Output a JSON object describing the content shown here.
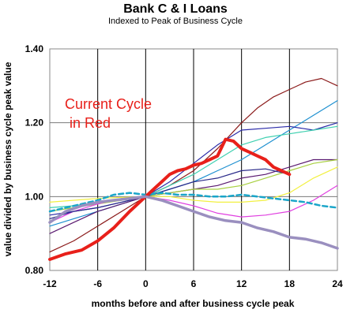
{
  "chart_data": {
    "type": "line",
    "title": "Bank C & I Loans",
    "subtitle": "Indexed to Peak of Business Cycle",
    "xlabel": "months before and after business cycle peak",
    "ylabel": "value divided by business cycle peak value",
    "xlim": [
      -12,
      24
    ],
    "ylim": [
      0.8,
      1.4
    ],
    "x_ticks": [
      "-12",
      "-6",
      "0",
      "6",
      "12",
      "18",
      "24"
    ],
    "y_ticks": [
      "0.80",
      "1.00",
      "1.20",
      "1.40"
    ],
    "grid": "horizontal gridlines and black vertical lines every 6 months",
    "annotation": {
      "line1": "Current Cycle",
      "line2": "in Red",
      "color": "#e8201a"
    },
    "series": [
      {
        "color": "#e8201a",
        "style": "thick",
        "x": [
          -12,
          -10,
          -8,
          -6,
          -4,
          -2,
          0,
          1,
          2,
          3,
          4,
          5,
          6,
          7,
          8,
          9,
          10,
          11,
          12,
          13,
          14,
          15,
          16,
          17,
          18
        ],
        "y": [
          0.83,
          0.845,
          0.855,
          0.88,
          0.915,
          0.96,
          1.0,
          1.02,
          1.04,
          1.06,
          1.07,
          1.075,
          1.085,
          1.09,
          1.1,
          1.11,
          1.155,
          1.15,
          1.13,
          1.12,
          1.11,
          1.1,
          1.08,
          1.07,
          1.06
        ]
      },
      {
        "color": "#9a8fbf",
        "style": "thick",
        "x": [
          -12,
          -10,
          -8,
          -6,
          -4,
          -2,
          0,
          2,
          4,
          6,
          8,
          10,
          12,
          14,
          16,
          18,
          20,
          22,
          24
        ],
        "y": [
          0.93,
          0.96,
          0.975,
          0.985,
          0.99,
          0.995,
          1.0,
          0.99,
          0.975,
          0.96,
          0.945,
          0.935,
          0.93,
          0.915,
          0.905,
          0.89,
          0.885,
          0.875,
          0.86
        ]
      },
      {
        "color": "#1aa5c9",
        "style": "dashed",
        "x": [
          -12,
          -10,
          -8,
          -6,
          -4,
          -2,
          0,
          2,
          4,
          6,
          8,
          10,
          12,
          14,
          16,
          18,
          20,
          22,
          24
        ],
        "y": [
          0.96,
          0.97,
          0.98,
          0.99,
          1.005,
          1.01,
          1.005,
          1.01,
          1.005,
          1.005,
          1.0,
          1.0,
          1.005,
          1.0,
          0.995,
          0.99,
          0.985,
          0.975,
          0.97
        ]
      },
      {
        "color": "#8b1a1a",
        "x": [
          -12,
          -9,
          -6,
          -3,
          0,
          3,
          6,
          9,
          12,
          14,
          16,
          18,
          20,
          22,
          24
        ],
        "y": [
          0.85,
          0.88,
          0.92,
          0.96,
          1.0,
          1.03,
          1.07,
          1.13,
          1.2,
          1.24,
          1.27,
          1.29,
          1.31,
          1.32,
          1.3
        ]
      },
      {
        "color": "#1e90d0",
        "x": [
          -12,
          -9,
          -6,
          -3,
          0,
          3,
          6,
          9,
          12,
          15,
          18,
          21,
          24
        ],
        "y": [
          0.92,
          0.94,
          0.96,
          0.98,
          1.0,
          1.02,
          1.04,
          1.07,
          1.1,
          1.14,
          1.18,
          1.22,
          1.26
        ]
      },
      {
        "color": "#2a2aa8",
        "x": [
          -12,
          -9,
          -6,
          -3,
          0,
          3,
          6,
          9,
          12,
          15,
          18,
          21,
          24
        ],
        "y": [
          0.95,
          0.96,
          0.97,
          0.985,
          1.0,
          1.04,
          1.09,
          1.14,
          1.18,
          1.185,
          1.19,
          1.18,
          1.2
        ]
      },
      {
        "color": "#3fd0b0",
        "x": [
          -12,
          -9,
          -6,
          -3,
          0,
          3,
          6,
          9,
          12,
          15,
          18,
          21,
          24
        ],
        "y": [
          0.97,
          0.975,
          0.985,
          0.99,
          1.0,
          1.03,
          1.06,
          1.1,
          1.14,
          1.16,
          1.17,
          1.18,
          1.19
        ]
      },
      {
        "color": "#5a1a70",
        "x": [
          -12,
          -9,
          -6,
          -3,
          0,
          3,
          6,
          9,
          12,
          15,
          18,
          21,
          24
        ],
        "y": [
          0.9,
          0.93,
          0.96,
          0.98,
          1.0,
          1.01,
          1.02,
          1.03,
          1.05,
          1.06,
          1.08,
          1.1,
          1.1
        ]
      },
      {
        "color": "#a8d040",
        "x": [
          -12,
          -9,
          -6,
          -3,
          0,
          3,
          6,
          9,
          12,
          15,
          18,
          21,
          24
        ],
        "y": [
          0.96,
          0.97,
          0.98,
          0.99,
          1.0,
          1.01,
          1.02,
          1.02,
          1.03,
          1.05,
          1.07,
          1.09,
          1.1
        ]
      },
      {
        "color": "#f2f040",
        "x": [
          -12,
          -9,
          -6,
          -3,
          0,
          3,
          6,
          9,
          12,
          15,
          18,
          21,
          24
        ],
        "y": [
          0.985,
          0.99,
          0.995,
          0.998,
          1.0,
          1.0,
          0.99,
          0.985,
          0.985,
          0.99,
          1.01,
          1.05,
          1.08
        ]
      },
      {
        "color": "#e040e0",
        "x": [
          -12,
          -9,
          -6,
          -3,
          0,
          3,
          6,
          9,
          12,
          15,
          18,
          21,
          24
        ],
        "y": [
          0.93,
          0.96,
          0.98,
          0.995,
          1.0,
          0.99,
          0.975,
          0.955,
          0.945,
          0.95,
          0.96,
          0.99,
          1.03
        ]
      },
      {
        "color": "#2a2a8a",
        "x": [
          -12,
          -9,
          -6,
          -3,
          0,
          3,
          6,
          9,
          12,
          15,
          18
        ],
        "y": [
          0.94,
          0.96,
          0.97,
          0.985,
          1.0,
          1.02,
          1.04,
          1.05,
          1.07,
          1.075,
          1.06
        ]
      }
    ]
  }
}
